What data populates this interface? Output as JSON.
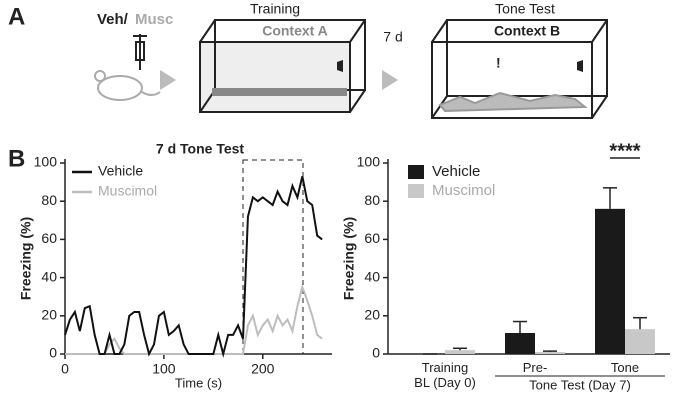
{
  "panel_a": {
    "label": "A",
    "drug_vehicle": "Veh/",
    "drug_muscimol": "Musc",
    "training_title": "Training",
    "context_a": "Context A",
    "interval": "7 d",
    "test_title": "Tone Test",
    "context_b": "Context B",
    "alert": "!"
  },
  "panel_b_label": "B",
  "chart_data": [
    {
      "type": "line",
      "title": "7 d Tone Test",
      "x_label": "Time (s)",
      "y_label": "Freezing (%)",
      "x": [
        0,
        5,
        10,
        15,
        20,
        25,
        30,
        35,
        40,
        45,
        50,
        55,
        60,
        65,
        70,
        75,
        80,
        85,
        90,
        95,
        100,
        105,
        110,
        115,
        120,
        125,
        130,
        135,
        140,
        145,
        150,
        155,
        160,
        165,
        170,
        175,
        180,
        185,
        190,
        195,
        200,
        205,
        210,
        215,
        220,
        225,
        230,
        235,
        240,
        245,
        250,
        255,
        260
      ],
      "series": [
        {
          "name": "Vehicle",
          "color": "#111111",
          "values": [
            10,
            18,
            22,
            12,
            24,
            25,
            10,
            0,
            0,
            10,
            0,
            0,
            5,
            20,
            22,
            22,
            10,
            0,
            5,
            20,
            22,
            10,
            12,
            15,
            5,
            0,
            0,
            0,
            0,
            0,
            0,
            10,
            0,
            10,
            10,
            15,
            8,
            72,
            82,
            80,
            82,
            80,
            78,
            85,
            80,
            78,
            88,
            82,
            93,
            80,
            78,
            62,
            60
          ]
        },
        {
          "name": "Muscimol",
          "color": "#bdbdbd",
          "values": [
            0,
            0,
            0,
            0,
            0,
            0,
            0,
            0,
            0,
            5,
            8,
            3,
            0,
            0,
            0,
            0,
            0,
            0,
            0,
            0,
            0,
            0,
            0,
            0,
            0,
            0,
            0,
            0,
            0,
            0,
            0,
            0,
            0,
            0,
            0,
            0,
            0,
            15,
            20,
            10,
            15,
            18,
            12,
            20,
            15,
            18,
            12,
            25,
            35,
            28,
            20,
            10,
            8
          ]
        }
      ],
      "xlim": [
        0,
        270
      ],
      "ylim": [
        0,
        100
      ],
      "xticks": [
        0,
        100,
        200
      ],
      "yticks": [
        0,
        20,
        40,
        60,
        80,
        100
      ],
      "legend": "upper left"
    },
    {
      "type": "bar",
      "y_label": "Freezing (%)",
      "categories": [
        "Training\nBL (Day 0)",
        "Pre-",
        "Tone"
      ],
      "group_label": "Tone Test (Day 7)",
      "series": [
        {
          "name": "Vehicle",
          "color": "#1a1a1a",
          "values": [
            0,
            11,
            76
          ],
          "errors": [
            0,
            6,
            11
          ]
        },
        {
          "name": "Muscimol",
          "color": "#c8c8c8",
          "values": [
            2,
            1,
            13
          ],
          "errors": [
            1,
            0.5,
            6
          ]
        }
      ],
      "ylim": [
        0,
        100
      ],
      "yticks": [
        0,
        20,
        40,
        60,
        80,
        100
      ],
      "annotation": "****",
      "legend": "upper left"
    }
  ]
}
